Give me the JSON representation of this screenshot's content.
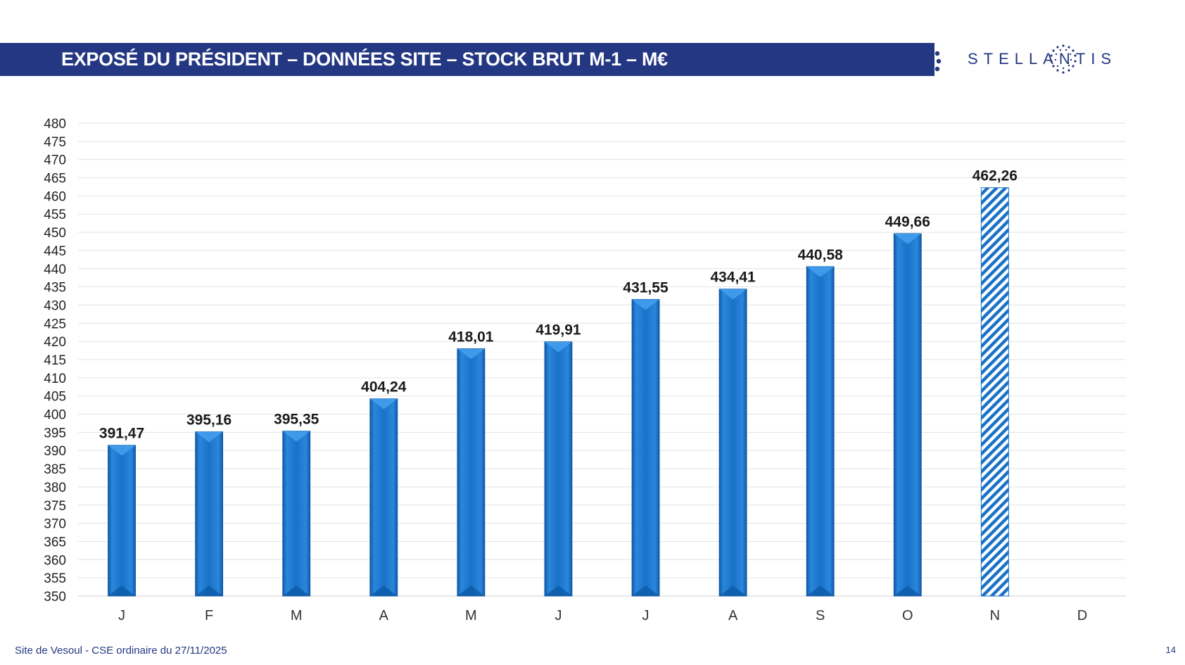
{
  "header": {
    "title": "EXPOSÉ DU PRÉSIDENT – DONNÉES SITE – STOCK BRUT M-1 – M€",
    "logo_text": "STELLANTIS"
  },
  "footer": {
    "site": "Site de Vesoul - CSE ordinaire du 27/11/2025",
    "page_number": "14"
  },
  "colors": {
    "brand": "#243782",
    "bar": "#1a72c8",
    "bar_dark": "#0b4f99",
    "bar_light": "#3d93e4",
    "forecast": "#1a72c8"
  },
  "chart_data": {
    "type": "bar",
    "title": "",
    "xlabel": "",
    "ylabel": "",
    "ylim": [
      350,
      480
    ],
    "ytick_step": 5,
    "categories": [
      "J",
      "F",
      "M",
      "A",
      "M",
      "J",
      "J",
      "A",
      "S",
      "O",
      "N",
      "D"
    ],
    "values": [
      391.47,
      395.16,
      395.35,
      404.24,
      418.01,
      419.91,
      431.55,
      434.41,
      440.58,
      449.66,
      462.26,
      null
    ],
    "value_labels": [
      "391,47",
      "395,16",
      "395,35",
      "404,24",
      "418,01",
      "419,91",
      "431,55",
      "434,41",
      "440,58",
      "449,66",
      "462,26",
      ""
    ],
    "hatched": [
      false,
      false,
      false,
      false,
      false,
      false,
      false,
      false,
      false,
      false,
      true,
      false
    ],
    "grid": true,
    "legend": "none"
  }
}
